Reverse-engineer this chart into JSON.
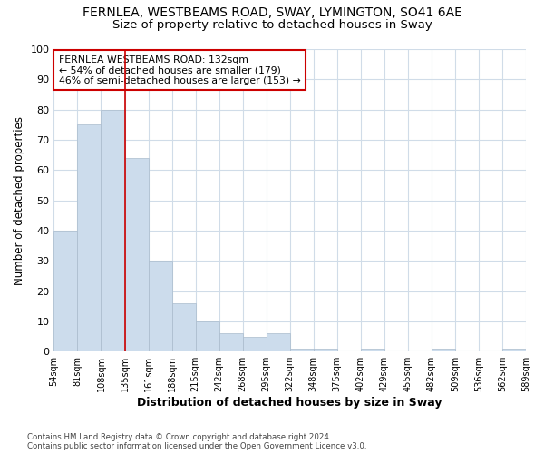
{
  "title1": "FERNLEA, WESTBEAMS ROAD, SWAY, LYMINGTON, SO41 6AE",
  "title2": "Size of property relative to detached houses in Sway",
  "xlabel": "Distribution of detached houses by size in Sway",
  "ylabel": "Number of detached properties",
  "footnote": "Contains HM Land Registry data © Crown copyright and database right 2024.\nContains public sector information licensed under the Open Government Licence v3.0.",
  "bin_labels": [
    "54sqm",
    "81sqm",
    "108sqm",
    "135sqm",
    "161sqm",
    "188sqm",
    "215sqm",
    "242sqm",
    "268sqm",
    "295sqm",
    "322sqm",
    "348sqm",
    "375sqm",
    "402sqm",
    "429sqm",
    "455sqm",
    "482sqm",
    "509sqm",
    "536sqm",
    "562sqm",
    "589sqm"
  ],
  "bar_values": [
    40,
    75,
    80,
    64,
    30,
    16,
    10,
    6,
    5,
    6,
    1,
    1,
    0,
    1,
    0,
    0,
    1,
    0,
    0,
    1
  ],
  "bar_color": "#ccdcec",
  "bar_edge_color": "#aabbcc",
  "vline_color": "#cc0000",
  "annotation_text": "FERNLEA WESTBEAMS ROAD: 132sqm\n← 54% of detached houses are smaller (179)\n46% of semi-detached houses are larger (153) →",
  "annotation_box_color": "white",
  "annotation_box_edge_color": "#cc0000",
  "ylim": [
    0,
    100
  ],
  "background_color": "#ffffff",
  "plot_background_color": "#ffffff",
  "grid_color": "#d0dce8",
  "title1_fontsize": 10,
  "title2_fontsize": 9.5,
  "xlabel_fontsize": 9,
  "ylabel_fontsize": 8.5
}
